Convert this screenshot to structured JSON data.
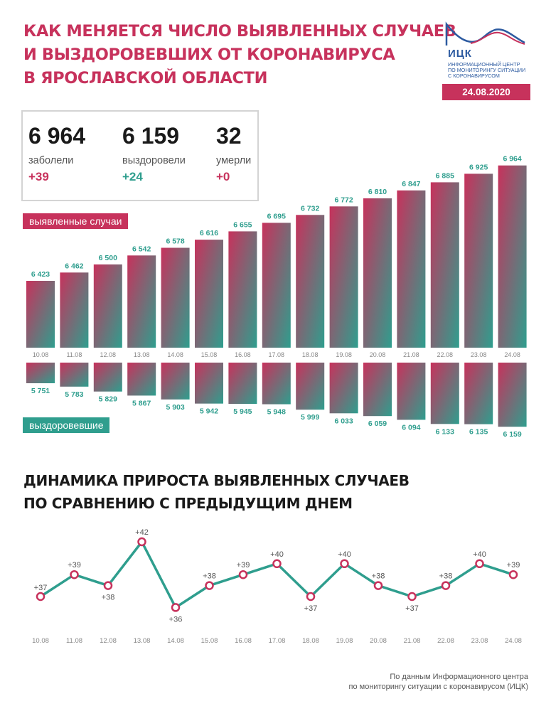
{
  "header": {
    "title_lines": [
      "КАК МЕНЯЕТСЯ ЧИСЛО ВЫЯВЛЕННЫХ СЛУЧАЕВ",
      "И ВЫЗДОРОВЕВШИХ ОТ КОРОНАВИРУСА",
      "В ЯРОСЛАВСКОЙ ОБЛАСТИ"
    ],
    "date": "24.08.2020"
  },
  "logo": {
    "name": "ИЦК",
    "subtitle_lines": [
      "ИНФОРМАЦИОННЫЙ ЦЕНТР",
      "ПО МОНИТОРИНГУ СИТУАЦИИ",
      "С КОРОНАВИРУСОМ"
    ]
  },
  "stats": {
    "cases": {
      "value": "6 964",
      "label": "заболели",
      "change": "+39"
    },
    "recovered": {
      "value": "6 159",
      "label": "выздоровели",
      "change": "+24"
    },
    "deaths": {
      "value": "32",
      "label": "умерли",
      "change": "+0"
    }
  },
  "labels": {
    "cases_tag": "выявленные случаи",
    "recovered_tag": "выздоровевшие"
  },
  "section": {
    "title_lines": [
      "ДИНАМИКА ПРИРОСТА ВЫЯВЛЕННЫХ СЛУЧАЕВ",
      "ПО СРАВНЕНИЮ С ПРЕДЫДУЩИМ ДНЕМ"
    ]
  },
  "source_lines": [
    "По данным Информационного центра",
    "по мониторингу ситуации с коронавирусом (ИЦК)"
  ],
  "colors": {
    "accent": "#c7325c",
    "teal": "#2f9e8e",
    "date_label": "#888888"
  },
  "chart_data": [
    {
      "type": "bar",
      "categories": [
        "10.08",
        "11.08",
        "12.08",
        "13.08",
        "14.08",
        "15.08",
        "16.08",
        "17.08",
        "18.08",
        "19.08",
        "20.08",
        "21.08",
        "22.08",
        "23.08",
        "24.08"
      ],
      "series": [
        {
          "name": "выявленные случаи",
          "values": [
            6423,
            6462,
            6500,
            6542,
            6578,
            6616,
            6655,
            6695,
            6732,
            6772,
            6810,
            6847,
            6885,
            6925,
            6964
          ],
          "labels": [
            "6 423",
            "6 462",
            "6 500",
            "6 542",
            "6 578",
            "6 616",
            "6 655",
            "6 695",
            "6 732",
            "6 772",
            "6 810",
            "6 847",
            "6 885",
            "6 925",
            "6 964"
          ]
        },
        {
          "name": "выздоровевшие",
          "values": [
            5751,
            5783,
            5829,
            5867,
            5903,
            5942,
            5945,
            5948,
            5999,
            6033,
            6059,
            6094,
            6133,
            6135,
            6159
          ],
          "labels": [
            "5 751",
            "5 783",
            "5 829",
            "5 867",
            "5 903",
            "5 942",
            "5 945",
            "5 948",
            "5 999",
            "6 033",
            "6 059",
            "6 094",
            "6 133",
            "6 135",
            "6 159"
          ]
        }
      ]
    },
    {
      "type": "line",
      "x": [
        "10.08",
        "11.08",
        "12.08",
        "13.08",
        "14.08",
        "15.08",
        "16.08",
        "17.08",
        "18.08",
        "19.08",
        "20.08",
        "21.08",
        "22.08",
        "23.08",
        "24.08"
      ],
      "values": [
        37,
        39,
        38,
        42,
        36,
        38,
        39,
        40,
        37,
        40,
        38,
        37,
        38,
        40,
        39
      ],
      "labels": [
        "+37",
        "+39",
        "+38",
        "+42",
        "+36",
        "+38",
        "+39",
        "+40",
        "+37",
        "+40",
        "+38",
        "+37",
        "+38",
        "+40",
        "+39"
      ]
    }
  ]
}
